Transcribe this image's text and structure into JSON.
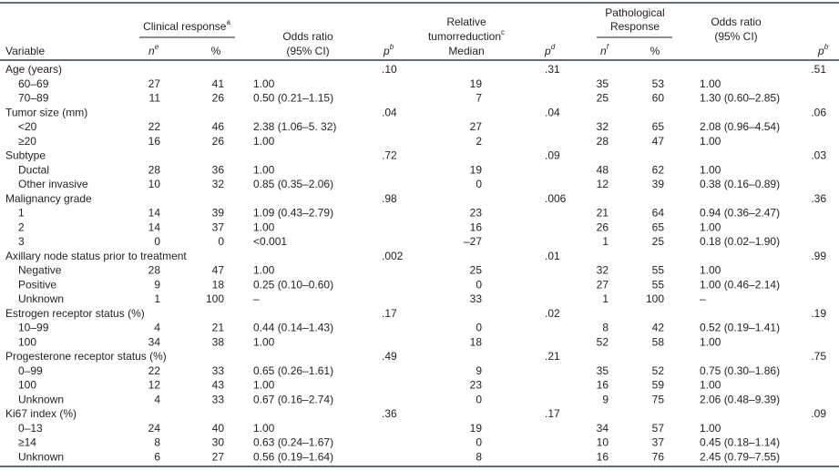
{
  "header": {
    "variable": "Variable",
    "clinical": {
      "text": "Clinical response",
      "sup": "a"
    },
    "n1": {
      "text": "n",
      "sup": "e"
    },
    "pct1": "%",
    "or1": {
      "line1": "Odds ratio",
      "line2": "(95% CI)"
    },
    "p1": {
      "text": "p",
      "sup": "b"
    },
    "tumor": {
      "line1": "Relative",
      "line2": "tumorreduction",
      "sup": "c",
      "line3": "Median"
    },
    "p2": {
      "text": "p",
      "sup": "d"
    },
    "patho": {
      "line1": "Pathological",
      "line2": "Response"
    },
    "n2": {
      "text": "n",
      "sup": "f"
    },
    "pct2": "%",
    "or2": {
      "line1": "Odds ratio",
      "line2": "(95% CI)"
    },
    "p3": {
      "text": "p",
      "sup": "b"
    }
  },
  "table": {
    "rows": [
      {
        "variable": "Age (years)",
        "p1": ".10",
        "p2": ".31",
        "p3": ".51"
      },
      {
        "variable": "60–69",
        "n1": "27",
        "pct1": "41",
        "or1": "1.00",
        "median": "19",
        "n2": "35",
        "pct2": "53",
        "or2": "1.00"
      },
      {
        "variable": "70–89",
        "n1": "11",
        "pct1": "26",
        "or1": "0.50 (0.21–1.15)",
        "median": "7",
        "n2": "25",
        "pct2": "60",
        "or2": "1.30 (0.60–2.85)"
      },
      {
        "variable": "Tumor size (mm)",
        "p1": ".04",
        "p2": ".04",
        "p3": ".06"
      },
      {
        "variable": "<20",
        "n1": "22",
        "pct1": "46",
        "or1": "2.38 (1.06–5. 32)",
        "median": "27",
        "n2": "32",
        "pct2": "65",
        "or2": "2.08 (0.96–4.54)"
      },
      {
        "variable": "≥20",
        "n1": "16",
        "pct1": "26",
        "or1": "1.00",
        "median": "2",
        "n2": "28",
        "pct2": "47",
        "or2": "1.00"
      },
      {
        "variable": "Subtype",
        "p1": ".72",
        "p2": ".09",
        "p3": ".03"
      },
      {
        "variable": "Ductal",
        "n1": "28",
        "pct1": "36",
        "or1": "1.00",
        "median": "19",
        "n2": "48",
        "pct2": "62",
        "or2": "1.00"
      },
      {
        "variable": "Other invasive",
        "n1": "10",
        "pct1": "32",
        "or1": "0.85 (0.35–2.06)",
        "median": "0",
        "n2": "12",
        "pct2": "39",
        "or2": "0.38 (0.16–0.89)"
      },
      {
        "variable": "Malignancy grade",
        "p1": ".98",
        "p2": ".006",
        "p3": ".36"
      },
      {
        "variable": "1",
        "n1": "14",
        "pct1": "39",
        "or1": "1.09 (0.43–2.79)",
        "median": "23",
        "n2": "21",
        "pct2": "64",
        "or2": "0.94 (0.36–2.47)"
      },
      {
        "variable": "2",
        "n1": "14",
        "pct1": "37",
        "or1": "1.00",
        "median": "16",
        "n2": "26",
        "pct2": "65",
        "or2": "1.00"
      },
      {
        "variable": "3",
        "n1": "0",
        "pct1": "0",
        "or1": "<0.001",
        "median": "–27",
        "n2": "1",
        "pct2": "25",
        "or2": "0.18 (0.02–1.90)"
      },
      {
        "variable": "Axillary node status prior to treatment",
        "p1": ".002",
        "p2": ".01",
        "p3": ".99"
      },
      {
        "variable": "Negative",
        "n1": "28",
        "pct1": "47",
        "or1": "1.00",
        "median": "25",
        "n2": "32",
        "pct2": "55",
        "or2": "1.00"
      },
      {
        "variable": "Positive",
        "n1": "9",
        "pct1": "18",
        "or1": "0.25 (0.10–0.60)",
        "median": "0",
        "n2": "27",
        "pct2": "55",
        "or2": "1.00 (0.46–2.14)"
      },
      {
        "variable": "Unknown",
        "n1": "1",
        "pct1": "100",
        "or1": "–",
        "median": "33",
        "n2": "1",
        "pct2": "100",
        "or2": "–"
      },
      {
        "variable": "Estrogen receptor status (%)",
        "p1": ".17",
        "p2": ".02",
        "p3": ".19"
      },
      {
        "variable": "10–99",
        "n1": "4",
        "pct1": "21",
        "or1": "0.44 (0.14–1.43)",
        "median": "0",
        "n2": "8",
        "pct2": "42",
        "or2": "0.52 (0.19–1.41)"
      },
      {
        "variable": "100",
        "n1": "34",
        "pct1": "38",
        "or1": "1.00",
        "median": "18",
        "n2": "52",
        "pct2": "58",
        "or2": "1.00"
      },
      {
        "variable": "Progesterone receptor status (%)",
        "p1": ".49",
        "p2": ".21",
        "p3": ".75"
      },
      {
        "variable": "0–99",
        "n1": "22",
        "pct1": "33",
        "or1": "0.65 (0.26–1.61)",
        "median": "9",
        "n2": "35",
        "pct2": "52",
        "or2": "0.75 (0.30–1.86)"
      },
      {
        "variable": "100",
        "n1": "12",
        "pct1": "43",
        "or1": "1.00",
        "median": "23",
        "n2": "16",
        "pct2": "59",
        "or2": "1.00"
      },
      {
        "variable": "Unknown",
        "n1": "4",
        "pct1": "33",
        "or1": "0.67 (0.16–2.74)",
        "median": "0",
        "n2": "9",
        "pct2": "75",
        "or2": "2.06 (0.48–9.39)"
      },
      {
        "variable": "Ki67 index (%)",
        "p1": ".36",
        "p2": ".17",
        "p3": ".09"
      },
      {
        "variable": "0–13",
        "n1": "24",
        "pct1": "40",
        "or1": "1.00",
        "median": "19",
        "n2": "34",
        "pct2": "57",
        "or2": "1.00"
      },
      {
        "variable": "≥14",
        "n1": "8",
        "pct1": "30",
        "or1": "0.63 (0.24–1.67)",
        "median": "0",
        "n2": "10",
        "pct2": "37",
        "or2": "0.45 (0.18–1.14)"
      },
      {
        "variable": "Unknown",
        "n1": "6",
        "pct1": "27",
        "or1": "0.56 (0.19–1.64)",
        "median": "8",
        "n2": "16",
        "pct2": "76",
        "or2": "2.45 (0.79–7.55)"
      }
    ]
  }
}
